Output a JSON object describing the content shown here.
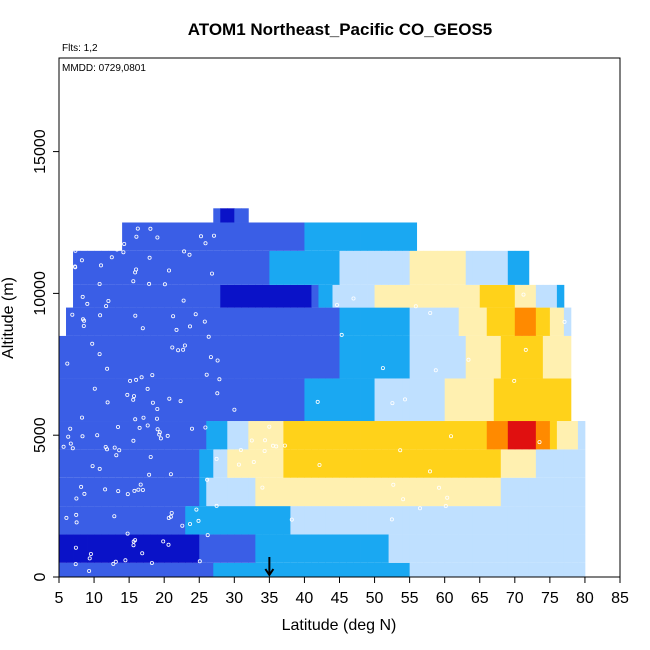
{
  "chart_data": {
    "type": "heatmap",
    "title": "ATOM1 Northeast_Pacific CO_GEOS5",
    "annotations": [
      "Flts: 1,2",
      "MMDD: 0729,0801"
    ],
    "xlabel": "Latitude (deg N)",
    "ylabel": "Altitude (m)",
    "xlim": [
      5,
      85
    ],
    "ylim": [
      0,
      18300
    ],
    "x_ticks": [
      5,
      10,
      15,
      20,
      25,
      30,
      35,
      40,
      45,
      50,
      55,
      60,
      65,
      70,
      75,
      80,
      85
    ],
    "y_ticks": [
      0,
      5000,
      10000,
      15000
    ],
    "grid": false,
    "legend": "none",
    "marker": {
      "latitude": 35,
      "label": "arrow-down-icon"
    },
    "colors": {
      "very_low": "#0a12c8",
      "low": "#3a5ee6",
      "mid_low": "#1aa8f2",
      "mid": "#bfe0ff",
      "mid_high": "#fff0b0",
      "high": "#ffd21a",
      "very_high": "#ff8a00",
      "extreme": "#e01010"
    },
    "bands": [
      {
        "alt": [
          0,
          500
        ],
        "lat": [
          5,
          80
        ],
        "stops": [
          [
            5,
            1
          ],
          [
            25,
            1
          ],
          [
            30,
            2
          ],
          [
            45,
            2
          ],
          [
            65,
            3
          ],
          [
            80,
            3
          ]
        ]
      },
      {
        "alt": [
          500,
          1500
        ],
        "lat": [
          5,
          80
        ],
        "stops": [
          [
            5,
            0
          ],
          [
            24,
            0
          ],
          [
            26,
            1
          ],
          [
            40,
            2
          ],
          [
            65,
            3
          ],
          [
            80,
            3
          ]
        ]
      },
      {
        "alt": [
          1500,
          2500
        ],
        "lat": [
          5,
          80
        ],
        "stops": [
          [
            5,
            1
          ],
          [
            20,
            1
          ],
          [
            26,
            2
          ],
          [
            50,
            3
          ],
          [
            80,
            3
          ]
        ]
      },
      {
        "alt": [
          2500,
          3500
        ],
        "lat": [
          5,
          80
        ],
        "stops": [
          [
            5,
            1
          ],
          [
            24,
            1
          ],
          [
            27,
            3
          ],
          [
            40,
            4
          ],
          [
            60,
            4
          ],
          [
            75,
            3
          ],
          [
            80,
            3
          ]
        ]
      },
      {
        "alt": [
          3500,
          4500
        ],
        "lat": [
          5,
          80
        ],
        "stops": [
          [
            5,
            1
          ],
          [
            24,
            1
          ],
          [
            30,
            4
          ],
          [
            45,
            5
          ],
          [
            65,
            5
          ],
          [
            75,
            3
          ],
          [
            80,
            3
          ]
        ]
      },
      {
        "alt": [
          4500,
          5500
        ],
        "lat": [
          5,
          80
        ],
        "stops": [
          [
            5,
            1
          ],
          [
            25,
            1
          ],
          [
            30,
            3
          ],
          [
            40,
            5
          ],
          [
            64,
            5
          ],
          [
            68,
            6
          ],
          [
            71,
            7
          ],
          [
            74,
            6
          ],
          [
            77,
            4
          ],
          [
            80,
            3
          ]
        ]
      },
      {
        "alt": [
          5500,
          7000
        ],
        "lat": [
          5,
          78
        ],
        "stops": [
          [
            5,
            1
          ],
          [
            35,
            1
          ],
          [
            45,
            2
          ],
          [
            55,
            3
          ],
          [
            65,
            4
          ],
          [
            70,
            5
          ],
          [
            78,
            5
          ]
        ]
      },
      {
        "alt": [
          7000,
          8500
        ],
        "lat": [
          5,
          78
        ],
        "stops": [
          [
            5,
            1
          ],
          [
            40,
            1
          ],
          [
            50,
            2
          ],
          [
            60,
            3
          ],
          [
            66,
            4
          ],
          [
            70,
            5
          ],
          [
            78,
            4
          ]
        ]
      },
      {
        "alt": [
          8500,
          9500
        ],
        "lat": [
          6,
          78
        ],
        "stops": [
          [
            6,
            1
          ],
          [
            40,
            1
          ],
          [
            50,
            2
          ],
          [
            60,
            3
          ],
          [
            68,
            5
          ],
          [
            72,
            6
          ],
          [
            76,
            4
          ],
          [
            78,
            3
          ]
        ]
      },
      {
        "alt": [
          9500,
          10300
        ],
        "lat": [
          7,
          77
        ],
        "stops": [
          [
            7,
            1
          ],
          [
            25,
            1
          ],
          [
            30,
            0
          ],
          [
            40,
            0
          ],
          [
            45,
            3
          ],
          [
            55,
            4
          ],
          [
            62,
            4
          ],
          [
            68,
            5
          ],
          [
            74,
            3
          ],
          [
            77,
            2
          ]
        ]
      },
      {
        "alt": [
          10300,
          11500
        ],
        "lat": [
          7,
          72
        ],
        "stops": [
          [
            7,
            1
          ],
          [
            30,
            1
          ],
          [
            40,
            2
          ],
          [
            50,
            3
          ],
          [
            60,
            4
          ],
          [
            66,
            3
          ],
          [
            72,
            2
          ]
        ]
      },
      {
        "alt": [
          11500,
          12500
        ],
        "lat": [
          14,
          56
        ],
        "stops": [
          [
            14,
            1
          ],
          [
            35,
            1
          ],
          [
            45,
            2
          ],
          [
            56,
            2
          ]
        ]
      },
      {
        "alt": [
          12500,
          13000
        ],
        "lat": [
          27,
          32
        ],
        "stops": [
          [
            27,
            1
          ],
          [
            29,
            0
          ],
          [
            32,
            1
          ]
        ]
      }
    ]
  }
}
